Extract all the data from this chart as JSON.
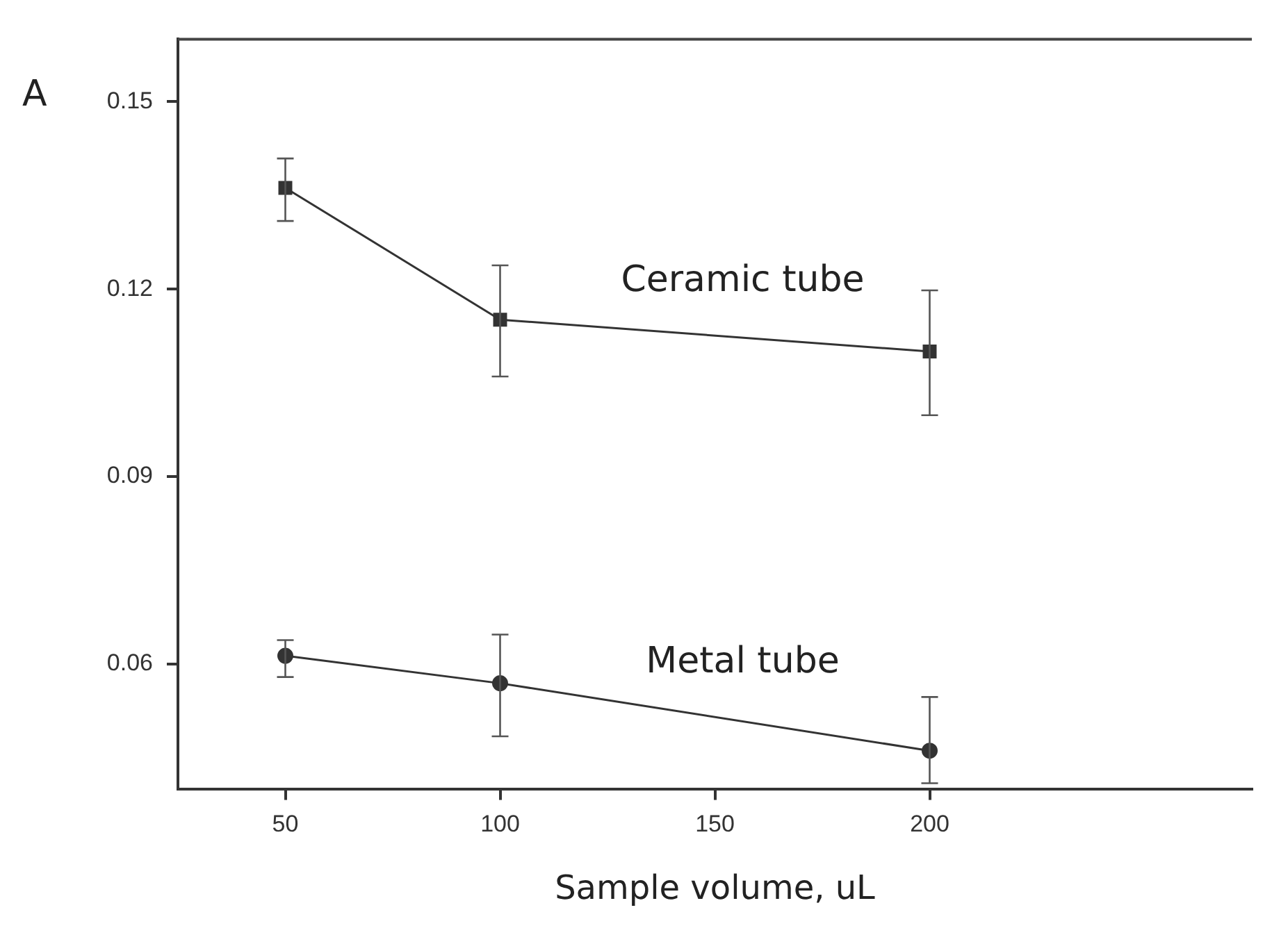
{
  "chart_data": {
    "type": "line",
    "xlabel": "Sample volume, uL",
    "annotations": [
      "A"
    ],
    "x": [
      50,
      100,
      200
    ],
    "series": [
      {
        "name": "Ceramic tube",
        "color": "#333333",
        "marker": "square",
        "values": [
          0.1362,
          0.1151,
          0.11
        ],
        "errors": [
          [
            0.1309,
            0.1409
          ],
          [
            0.106,
            0.1238
          ],
          [
            0.0998,
            0.1198
          ]
        ]
      },
      {
        "name": "Metal tube",
        "color": "#333333",
        "marker": "circle",
        "values": [
          0.0613,
          0.0569,
          0.0461
        ],
        "errors": [
          [
            0.0579,
            0.0638
          ],
          [
            0.0484,
            0.0647
          ],
          [
            0.0409,
            0.0547
          ]
        ]
      }
    ],
    "xlim": [
      25,
      275
    ],
    "xticks": [
      50,
      100,
      150,
      200
    ],
    "ylim": [
      0.04,
      0.16
    ],
    "yticks": [
      0.06,
      0.09,
      0.12,
      0.15
    ],
    "grid": false,
    "legend": false
  }
}
